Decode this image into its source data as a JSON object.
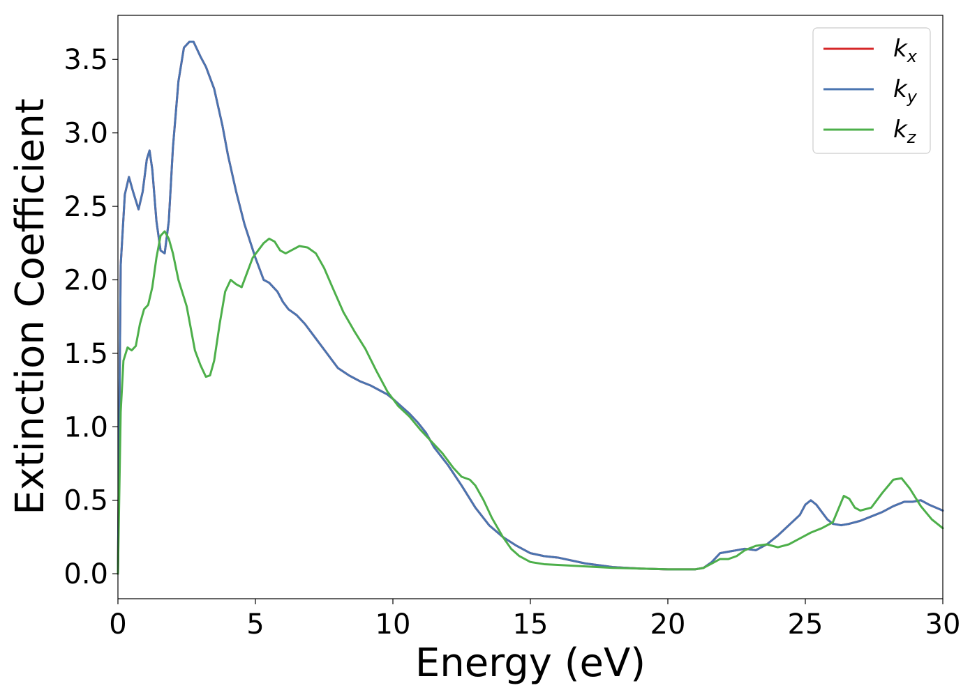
{
  "chart_data": {
    "type": "line",
    "title": "",
    "xlabel": "Energy (eV)",
    "ylabel": "Extinction Coefficient",
    "xlim": [
      0,
      30
    ],
    "ylim": [
      -0.17,
      3.8
    ],
    "xticks": [
      0,
      5,
      10,
      15,
      20,
      25,
      30
    ],
    "xtick_labels": [
      "0",
      "5",
      "10",
      "15",
      "20",
      "25",
      "30"
    ],
    "yticks": [
      0.0,
      0.5,
      1.0,
      1.5,
      2.0,
      2.5,
      3.0,
      3.5
    ],
    "ytick_labels": [
      "0.0",
      "0.5",
      "1.0",
      "1.5",
      "2.0",
      "2.5",
      "3.0",
      "3.5"
    ],
    "grid": false,
    "legend_position": "top-right",
    "series": [
      {
        "name": "k",
        "subscript": "x",
        "color": "#d62728",
        "x": [
          0,
          0.1,
          0.25,
          0.4,
          0.55,
          0.75,
          0.9,
          1.05,
          1.15,
          1.25,
          1.4,
          1.55,
          1.7,
          1.85,
          2.0,
          2.2,
          2.4,
          2.6,
          2.75,
          2.85,
          3.0,
          3.2,
          3.5,
          3.8,
          4.0,
          4.3,
          4.6,
          5.0,
          5.3,
          5.5,
          5.8,
          6.0,
          6.2,
          6.5,
          6.8,
          7.2,
          7.6,
          8.0,
          8.4,
          8.8,
          9.2,
          9.5,
          9.8,
          10.0,
          10.3,
          10.6,
          10.9,
          11.2,
          11.5,
          12.0,
          12.5,
          13.0,
          13.5,
          14.0,
          14.5,
          15.0,
          15.5,
          16.0,
          17.0,
          18.0,
          19.0,
          20.0,
          21.0,
          21.3,
          21.6,
          21.9,
          22.2,
          22.5,
          22.8,
          23.2,
          23.6,
          24.0,
          24.4,
          24.8,
          25.0,
          25.2,
          25.4,
          25.6,
          25.8,
          26.0,
          26.3,
          26.6,
          27.0,
          27.4,
          27.8,
          28.2,
          28.6,
          28.9,
          29.2,
          29.5,
          30.0
        ],
        "y": [
          0.0,
          2.1,
          2.58,
          2.7,
          2.6,
          2.48,
          2.6,
          2.82,
          2.88,
          2.75,
          2.4,
          2.2,
          2.18,
          2.4,
          2.9,
          3.35,
          3.58,
          3.62,
          3.62,
          3.58,
          3.52,
          3.45,
          3.3,
          3.05,
          2.85,
          2.6,
          2.38,
          2.15,
          2.0,
          1.98,
          1.92,
          1.85,
          1.8,
          1.76,
          1.7,
          1.6,
          1.5,
          1.4,
          1.35,
          1.31,
          1.28,
          1.25,
          1.22,
          1.19,
          1.14,
          1.09,
          1.03,
          0.96,
          0.86,
          0.74,
          0.6,
          0.45,
          0.33,
          0.25,
          0.19,
          0.14,
          0.12,
          0.11,
          0.07,
          0.045,
          0.035,
          0.03,
          0.03,
          0.04,
          0.08,
          0.14,
          0.15,
          0.16,
          0.17,
          0.16,
          0.2,
          0.26,
          0.33,
          0.4,
          0.47,
          0.5,
          0.47,
          0.42,
          0.37,
          0.34,
          0.33,
          0.34,
          0.36,
          0.39,
          0.42,
          0.46,
          0.49,
          0.49,
          0.5,
          0.47,
          0.43
        ]
      },
      {
        "name": "k",
        "subscript": "y",
        "color": "#4a74b0",
        "x": [
          0,
          0.1,
          0.25,
          0.4,
          0.55,
          0.75,
          0.9,
          1.05,
          1.15,
          1.25,
          1.4,
          1.55,
          1.7,
          1.85,
          2.0,
          2.2,
          2.4,
          2.6,
          2.75,
          2.85,
          3.0,
          3.2,
          3.5,
          3.8,
          4.0,
          4.3,
          4.6,
          5.0,
          5.3,
          5.5,
          5.8,
          6.0,
          6.2,
          6.5,
          6.8,
          7.2,
          7.6,
          8.0,
          8.4,
          8.8,
          9.2,
          9.5,
          9.8,
          10.0,
          10.3,
          10.6,
          10.9,
          11.2,
          11.5,
          12.0,
          12.5,
          13.0,
          13.5,
          14.0,
          14.5,
          15.0,
          15.5,
          16.0,
          17.0,
          18.0,
          19.0,
          20.0,
          21.0,
          21.3,
          21.6,
          21.9,
          22.2,
          22.5,
          22.8,
          23.2,
          23.6,
          24.0,
          24.4,
          24.8,
          25.0,
          25.2,
          25.4,
          25.6,
          25.8,
          26.0,
          26.3,
          26.6,
          27.0,
          27.4,
          27.8,
          28.2,
          28.6,
          28.9,
          29.2,
          29.5,
          30.0
        ],
        "y": [
          0.0,
          2.1,
          2.58,
          2.7,
          2.6,
          2.48,
          2.6,
          2.82,
          2.88,
          2.75,
          2.4,
          2.2,
          2.18,
          2.4,
          2.9,
          3.35,
          3.58,
          3.62,
          3.62,
          3.58,
          3.52,
          3.45,
          3.3,
          3.05,
          2.85,
          2.6,
          2.38,
          2.15,
          2.0,
          1.98,
          1.92,
          1.85,
          1.8,
          1.76,
          1.7,
          1.6,
          1.5,
          1.4,
          1.35,
          1.31,
          1.28,
          1.25,
          1.22,
          1.19,
          1.14,
          1.09,
          1.03,
          0.96,
          0.86,
          0.74,
          0.6,
          0.45,
          0.33,
          0.25,
          0.19,
          0.14,
          0.12,
          0.11,
          0.07,
          0.045,
          0.035,
          0.03,
          0.03,
          0.04,
          0.08,
          0.14,
          0.15,
          0.16,
          0.17,
          0.16,
          0.2,
          0.26,
          0.33,
          0.4,
          0.47,
          0.5,
          0.47,
          0.42,
          0.37,
          0.34,
          0.33,
          0.34,
          0.36,
          0.39,
          0.42,
          0.46,
          0.49,
          0.49,
          0.5,
          0.47,
          0.43
        ]
      },
      {
        "name": "k",
        "subscript": "z",
        "color": "#4daf4a",
        "x": [
          0,
          0.1,
          0.2,
          0.35,
          0.5,
          0.65,
          0.8,
          0.95,
          1.1,
          1.25,
          1.4,
          1.55,
          1.7,
          1.85,
          2.0,
          2.2,
          2.5,
          2.8,
          3.0,
          3.2,
          3.35,
          3.5,
          3.7,
          3.9,
          4.1,
          4.3,
          4.5,
          4.7,
          4.9,
          5.1,
          5.3,
          5.5,
          5.7,
          5.9,
          6.1,
          6.3,
          6.6,
          6.9,
          7.2,
          7.5,
          7.8,
          8.2,
          8.6,
          9.0,
          9.4,
          9.8,
          10.2,
          10.6,
          11.0,
          11.4,
          11.8,
          12.2,
          12.5,
          12.8,
          13.0,
          13.3,
          13.6,
          14.0,
          14.3,
          14.6,
          15.0,
          15.5,
          16.0,
          17.0,
          18.0,
          19.0,
          20.0,
          21.0,
          21.3,
          21.6,
          21.9,
          22.2,
          22.5,
          22.8,
          23.2,
          23.6,
          24.0,
          24.4,
          24.8,
          25.2,
          25.6,
          26.0,
          26.2,
          26.4,
          26.6,
          26.8,
          27.0,
          27.4,
          27.8,
          28.2,
          28.5,
          28.8,
          29.2,
          29.6,
          30.0
        ],
        "y": [
          0.0,
          1.1,
          1.45,
          1.54,
          1.52,
          1.55,
          1.7,
          1.8,
          1.83,
          1.95,
          2.15,
          2.3,
          2.33,
          2.28,
          2.18,
          2.0,
          1.82,
          1.52,
          1.42,
          1.34,
          1.35,
          1.45,
          1.7,
          1.92,
          2.0,
          1.97,
          1.95,
          2.05,
          2.15,
          2.2,
          2.25,
          2.28,
          2.26,
          2.2,
          2.18,
          2.2,
          2.23,
          2.22,
          2.18,
          2.08,
          1.95,
          1.78,
          1.65,
          1.53,
          1.38,
          1.24,
          1.14,
          1.07,
          0.98,
          0.9,
          0.82,
          0.72,
          0.66,
          0.64,
          0.6,
          0.5,
          0.38,
          0.25,
          0.17,
          0.12,
          0.08,
          0.065,
          0.06,
          0.05,
          0.04,
          0.035,
          0.03,
          0.03,
          0.04,
          0.07,
          0.1,
          0.1,
          0.12,
          0.16,
          0.19,
          0.2,
          0.18,
          0.2,
          0.24,
          0.28,
          0.31,
          0.35,
          0.44,
          0.53,
          0.51,
          0.45,
          0.43,
          0.45,
          0.55,
          0.64,
          0.65,
          0.58,
          0.46,
          0.37,
          0.31
        ]
      }
    ]
  }
}
